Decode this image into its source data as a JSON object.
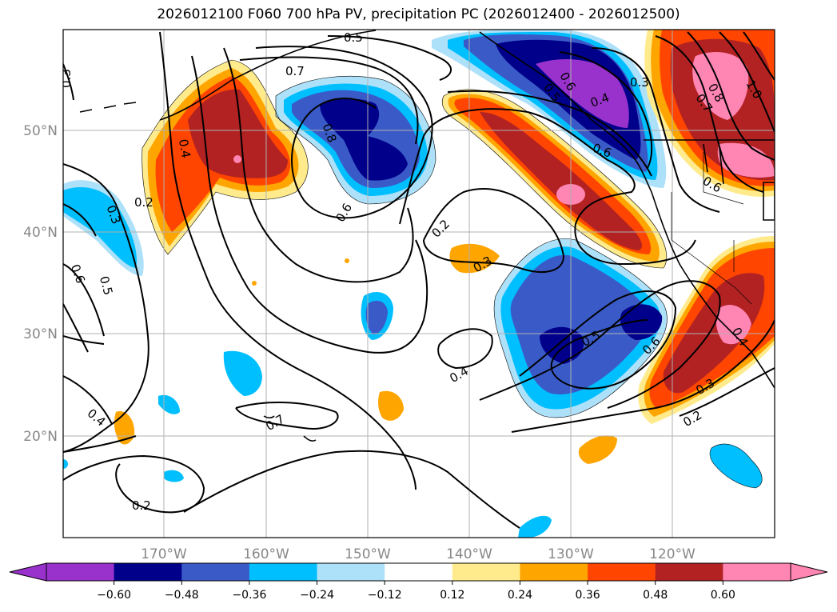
{
  "title": "2026012100 F060 700 hPa PV, precipitation PC (2026012400 - 2026012500)",
  "map": {
    "lat_labels": [
      "50°N",
      "40°N",
      "30°N",
      "20°N"
    ],
    "lon_labels": [
      "170°W",
      "160°W",
      "150°W",
      "140°W",
      "130°W",
      "120°W"
    ]
  },
  "contour_labels": [
    "0.3",
    "0.5",
    "0.7",
    "0.4",
    "0.8",
    "0.2",
    "0.3",
    "0.6",
    "0.5",
    "0.6",
    "0.2",
    "0.3",
    "0.5",
    "0.6",
    "0.4",
    "0.4",
    "0.7",
    "0.2",
    "0.2",
    "0.3",
    "0.3",
    "0.4",
    "0.6",
    "0.6",
    "0.8",
    "0.7",
    "1.0",
    "0.6",
    "0.5",
    "0.4"
  ],
  "colorbar": {
    "colors": [
      "#9932CC",
      "#00008B",
      "#3A5BC7",
      "#00BFFF",
      "#ADE1FA",
      "#FFFFFF",
      "#FFEB8C",
      "#FFA500",
      "#FF4500",
      "#B22222",
      "#FF85B2"
    ],
    "tick_labels": [
      "−0.60",
      "−0.48",
      "−0.36",
      "−0.24",
      "−0.12",
      "0.12",
      "0.24",
      "0.36",
      "0.48",
      "0.60"
    ]
  }
}
